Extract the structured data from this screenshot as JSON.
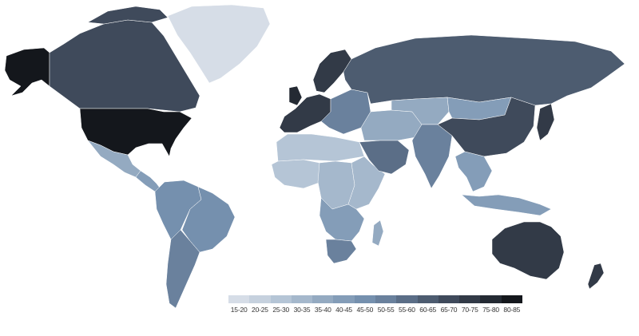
{
  "map": {
    "legend": {
      "bins": [
        {
          "label": "15-20",
          "color": "#d6dde7"
        },
        {
          "label": "20-25",
          "color": "#c6d1de"
        },
        {
          "label": "25-30",
          "color": "#b5c5d6"
        },
        {
          "label": "30-35",
          "color": "#a5b8cc"
        },
        {
          "label": "35-40",
          "color": "#94aac1"
        },
        {
          "label": "40-45",
          "color": "#849db8"
        },
        {
          "label": "45-50",
          "color": "#7590ae"
        },
        {
          "label": "50-55",
          "color": "#6a819d"
        },
        {
          "label": "55-60",
          "color": "#5b6e87"
        },
        {
          "label": "60-65",
          "color": "#4d5c70"
        },
        {
          "label": "65-70",
          "color": "#3f4a5b"
        },
        {
          "label": "70-75",
          "color": "#323a47"
        },
        {
          "label": "75-80",
          "color": "#242a33"
        },
        {
          "label": "80-85",
          "color": "#14171c"
        }
      ]
    },
    "regions": [
      {
        "name": "alaska",
        "bin": "80-85"
      },
      {
        "name": "canada",
        "bin": "65-70"
      },
      {
        "name": "greenland",
        "bin": "15-20"
      },
      {
        "name": "usa",
        "bin": "80-85"
      },
      {
        "name": "mexico",
        "bin": "35-40"
      },
      {
        "name": "central-america",
        "bin": "40-45"
      },
      {
        "name": "south-america-north",
        "bin": "45-50"
      },
      {
        "name": "brazil",
        "bin": "45-50"
      },
      {
        "name": "south-america-south",
        "bin": "50-55"
      },
      {
        "name": "uk",
        "bin": "75-80"
      },
      {
        "name": "scandinavia",
        "bin": "70-75"
      },
      {
        "name": "western-europe",
        "bin": "70-75"
      },
      {
        "name": "eastern-europe",
        "bin": "50-55"
      },
      {
        "name": "russia",
        "bin": "60-65"
      },
      {
        "name": "north-africa",
        "bin": "25-30"
      },
      {
        "name": "west-africa",
        "bin": "25-30"
      },
      {
        "name": "central-africa",
        "bin": "30-35"
      },
      {
        "name": "east-africa",
        "bin": "30-35"
      },
      {
        "name": "southern-africa",
        "bin": "40-45"
      },
      {
        "name": "south-africa",
        "bin": "50-55"
      },
      {
        "name": "madagascar",
        "bin": "35-40"
      },
      {
        "name": "middle-east",
        "bin": "35-40"
      },
      {
        "name": "arabia",
        "bin": "55-60"
      },
      {
        "name": "central-asia",
        "bin": "35-40"
      },
      {
        "name": "mongolia",
        "bin": "40-45"
      },
      {
        "name": "india",
        "bin": "50-55"
      },
      {
        "name": "china",
        "bin": "65-70"
      },
      {
        "name": "korea-japan",
        "bin": "70-75"
      },
      {
        "name": "southeast-asia",
        "bin": "40-45"
      },
      {
        "name": "indonesia",
        "bin": "40-45"
      },
      {
        "name": "australia",
        "bin": "70-75"
      },
      {
        "name": "new-zealand",
        "bin": "70-75"
      }
    ]
  }
}
